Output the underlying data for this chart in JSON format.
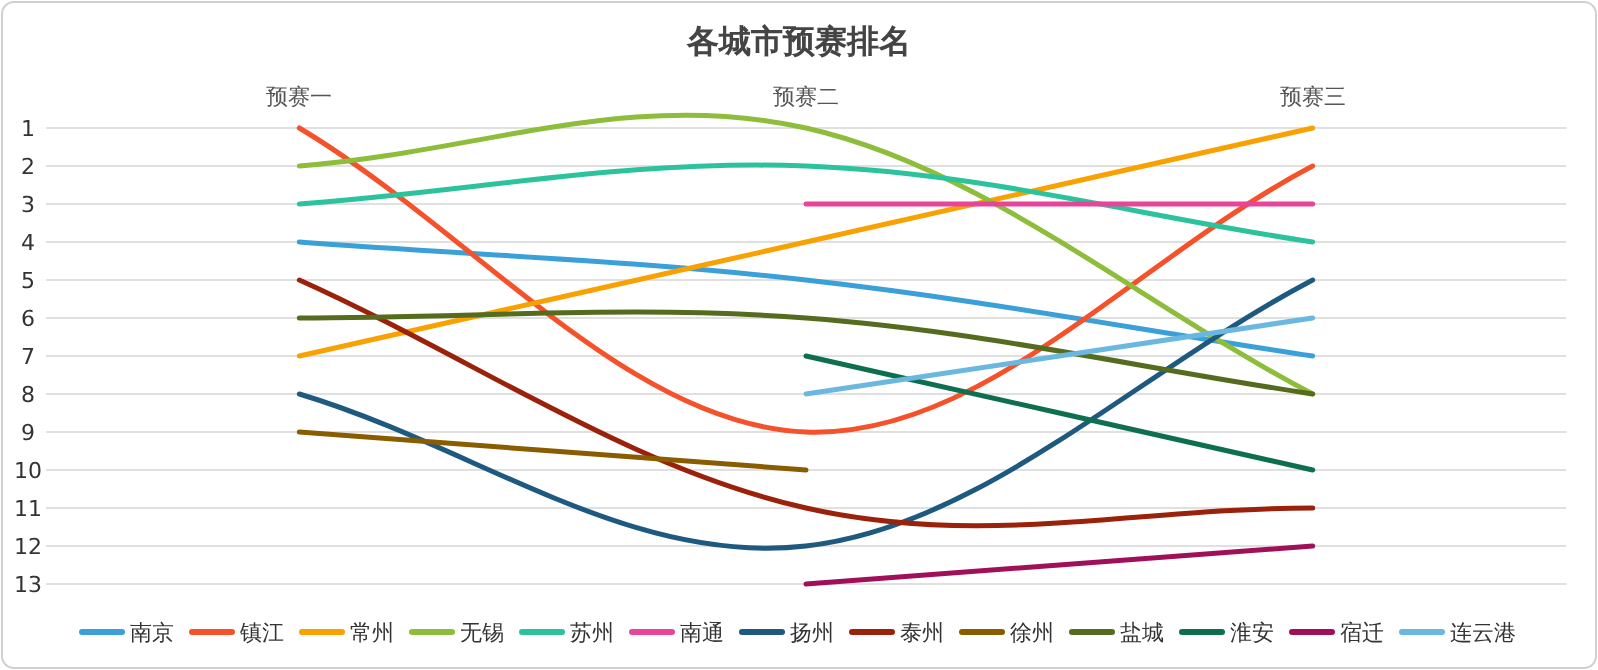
{
  "chart_data": {
    "type": "line",
    "title": "各城市预赛排名",
    "categories": [
      "预赛一",
      "预赛二",
      "预赛三"
    ],
    "ylim": [
      13,
      1
    ],
    "yticks": [
      1,
      2,
      3,
      4,
      5,
      6,
      7,
      8,
      9,
      10,
      11,
      12,
      13
    ],
    "grid": "y",
    "legend": "bottom",
    "marker": "none",
    "series": [
      {
        "name": "南京",
        "color": "#3b9fd8",
        "values": [
          4,
          5,
          7
        ]
      },
      {
        "name": "镇江",
        "color": "#f5522b",
        "values": [
          1,
          9,
          2
        ]
      },
      {
        "name": "常州",
        "color": "#f9a100",
        "values": [
          7,
          4,
          1
        ]
      },
      {
        "name": "无锡",
        "color": "#8dbd3a",
        "values": [
          2,
          1,
          8
        ]
      },
      {
        "name": "苏州",
        "color": "#2cc39c",
        "values": [
          3,
          2,
          4
        ]
      },
      {
        "name": "南通",
        "color": "#e8449a",
        "values": [
          null,
          3,
          3
        ]
      },
      {
        "name": "扬州",
        "color": "#1e5a80",
        "values": [
          8,
          12,
          5
        ]
      },
      {
        "name": "泰州",
        "color": "#9b220a",
        "values": [
          5,
          11,
          11
        ]
      },
      {
        "name": "徐州",
        "color": "#8a5c00",
        "values": [
          9,
          10,
          null
        ]
      },
      {
        "name": "盐城",
        "color": "#556b1e",
        "values": [
          6,
          6,
          8
        ]
      },
      {
        "name": "淮安",
        "color": "#0e6e50",
        "values": [
          null,
          7,
          10
        ]
      },
      {
        "name": "宿迁",
        "color": "#a0105a",
        "values": [
          null,
          13,
          12
        ]
      },
      {
        "name": "连云港",
        "color": "#6ab8e0",
        "values": [
          null,
          8,
          6
        ]
      }
    ]
  }
}
